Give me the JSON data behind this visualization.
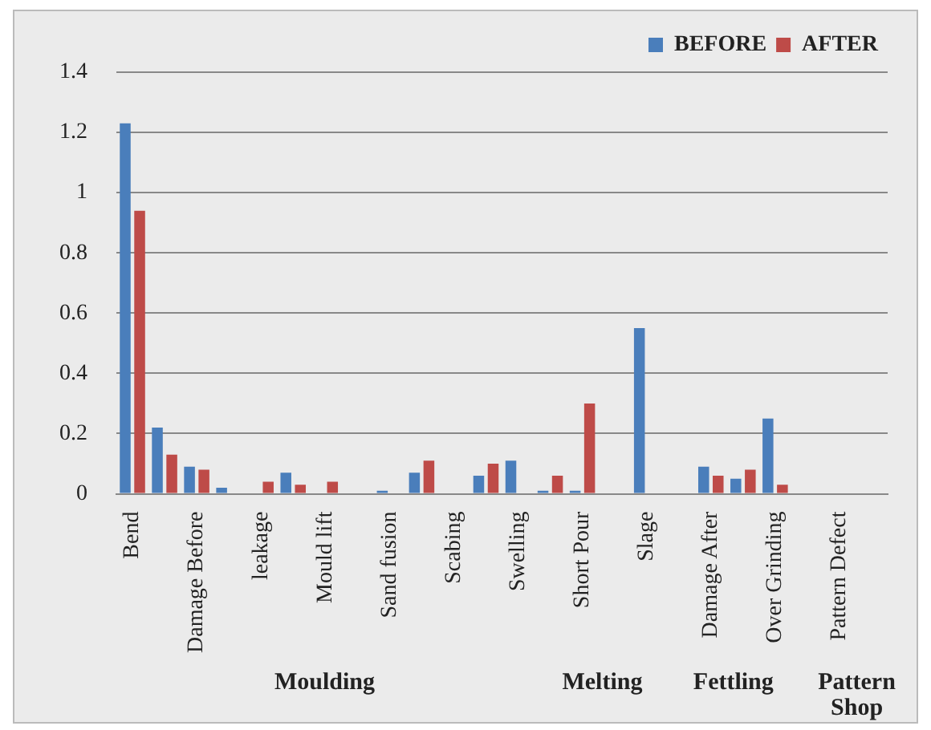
{
  "chart_data": {
    "type": "bar",
    "categories": [
      "Bend",
      null,
      "Damage Before",
      null,
      "leakage",
      null,
      "Mould lift",
      null,
      "Sand fusion",
      null,
      "Scabing",
      null,
      "Swelling",
      null,
      "Short Pour",
      null,
      "Slage",
      null,
      "Damage After",
      null,
      "Over Grinding",
      null,
      "Pattern Defect",
      null
    ],
    "series": [
      {
        "name": "BEFORE",
        "color": "#4a7ebb",
        "values": [
          1.23,
          0.22,
          0.09,
          0.02,
          0,
          0.07,
          0,
          0,
          0.01,
          0.07,
          0,
          0.06,
          0.11,
          0.01,
          0.01,
          0,
          0.55,
          0,
          0.09,
          0.05,
          0.25,
          0,
          0,
          0
        ]
      },
      {
        "name": "AFTER",
        "color": "#be4b48",
        "values": [
          0.94,
          0.13,
          0.08,
          0,
          0.04,
          0.03,
          0.04,
          0,
          0,
          0.11,
          0,
          0.1,
          0,
          0.06,
          0.3,
          0,
          0,
          0,
          0.06,
          0.08,
          0.03,
          0,
          0,
          0
        ]
      }
    ],
    "ylim": [
      0,
      1.4
    ],
    "yticks": [
      0,
      {
        "value": 0.2,
        "label": "0.2"
      },
      {
        "value": 0.4,
        "label": "0.4"
      },
      {
        "value": 0.6,
        "label": "0.6"
      },
      {
        "value": 0.8,
        "label": "0.8"
      },
      1,
      {
        "value": 1.2,
        "label": "1.2"
      },
      {
        "value": 1.4,
        "label": "1.4"
      }
    ],
    "grid": "y",
    "legend": "top right",
    "annotations": [
      "Moulding",
      "Melting",
      "Fettling",
      "Pattern Shop"
    ]
  }
}
